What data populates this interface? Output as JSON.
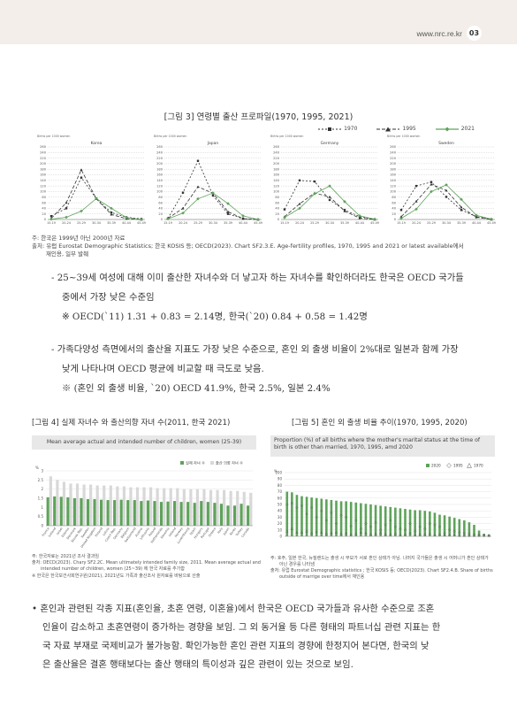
{
  "header": {
    "url": "www.nrc.re.kr",
    "page": "03"
  },
  "figure3": {
    "title": "[그림 3] 연령별 출산 프로파일(1970, 1995, 2021)",
    "legend": [
      "1970",
      "1995",
      "2021"
    ],
    "unit": "Births per 1000 women",
    "age_groups": [
      "15-19",
      "20-24",
      "25-29",
      "30-34",
      "35-39",
      "40-44",
      "45-49"
    ],
    "y_ticks": [
      0,
      20,
      40,
      60,
      80,
      100,
      120,
      140,
      160,
      180,
      200,
      220,
      240,
      260
    ],
    "note1": "주: 한국은 1999년 아닌 2000년 자료",
    "note2": "출처: 유럽 Eurostat Demographic Statistics; 한국 KOSIS 등; OECD(2023). Chart SF2.3.E. Age-fertility profiles, 1970, 1995 and 2021 or latest available에서",
    "note3": "재인용, 일부 발췌"
  },
  "chart_data": [
    {
      "type": "line",
      "title": "Korea",
      "x": [
        "15-19",
        "20-24",
        "25-29",
        "30-34",
        "35-39",
        "40-44",
        "45-49"
      ],
      "ylim": [
        0,
        260
      ],
      "series": [
        {
          "name": "1970",
          "values": [
            12,
            40,
            150,
            75,
            25,
            8,
            2
          ]
        },
        {
          "name": "1995",
          "values": [
            4,
            60,
            178,
            74,
            18,
            3,
            0
          ]
        },
        {
          "name": "2021",
          "values": [
            1,
            8,
            30,
            75,
            40,
            7,
            0
          ]
        }
      ]
    },
    {
      "type": "line",
      "title": "Japan",
      "x": [
        "15-19",
        "20-24",
        "25-29",
        "30-34",
        "35-39",
        "40-44",
        "45-49"
      ],
      "ylim": [
        0,
        260
      ],
      "series": [
        {
          "name": "1970",
          "values": [
            4,
            96,
            210,
            86,
            20,
            3,
            0
          ]
        },
        {
          "name": "1995",
          "values": [
            4,
            40,
            117,
            94,
            28,
            3,
            0
          ]
        },
        {
          "name": "2021",
          "values": [
            2,
            23,
            74,
            95,
            57,
            13,
            0
          ]
        }
      ]
    },
    {
      "type": "line",
      "title": "Germany",
      "x": [
        "15-19",
        "20-24",
        "25-29",
        "30-34",
        "35-39",
        "40-44",
        "45-49"
      ],
      "ylim": [
        0,
        260
      ],
      "series": [
        {
          "name": "1970",
          "values": [
            36,
            140,
            136,
            70,
            34,
            10,
            1
          ]
        },
        {
          "name": "1995",
          "values": [
            10,
            56,
            95,
            81,
            30,
            5,
            0
          ]
        },
        {
          "name": "2021",
          "values": [
            7,
            40,
            92,
            120,
            64,
            13,
            1
          ]
        }
      ]
    },
    {
      "type": "line",
      "title": "Sweden",
      "x": [
        "15-19",
        "20-24",
        "25-29",
        "30-34",
        "35-39",
        "40-44",
        "45-49"
      ],
      "ylim": [
        0,
        260
      ],
      "series": [
        {
          "name": "1970",
          "values": [
            34,
            120,
            134,
            81,
            34,
            10,
            1
          ]
        },
        {
          "name": "1995",
          "values": [
            10,
            65,
            126,
            104,
            44,
            8,
            0
          ]
        },
        {
          "name": "2021",
          "values": [
            4,
            37,
            100,
            124,
            72,
            15,
            1
          ]
        }
      ]
    },
    {
      "type": "bar",
      "title": "Mean average actual and intended number of children, women (25-39)",
      "ylim": [
        0,
        3
      ],
      "series": [
        {
          "name": "실제 자녀 수",
          "values": [
            1.55,
            1.6,
            1.58,
            1.55,
            1.5,
            1.5,
            1.45,
            1.45,
            1.42,
            1.4,
            1.4,
            1.42,
            1.4,
            1.4,
            1.35,
            1.38,
            1.35,
            1.3,
            1.32,
            1.35,
            1.3,
            1.3,
            1.25,
            1.35,
            1.3,
            1.25,
            1.2,
            1.1,
            1.1,
            1.2,
            1.1
          ]
        },
        {
          "name": "출산 의향 자녀 수",
          "values": [
            2.7,
            2.5,
            2.4,
            2.3,
            2.3,
            2.25,
            2.25,
            2.2,
            2.2,
            2.2,
            2.15,
            2.15,
            2.1,
            2.1,
            2.1,
            2.1,
            2.05,
            2.05,
            2.05,
            2.05,
            2.0,
            2.0,
            2.0,
            2.0,
            1.95,
            1.95,
            1.95,
            1.9,
            1.9,
            1.85,
            1.8
          ]
        }
      ]
    },
    {
      "type": "scatter",
      "title": "Proportion (%) of all births where the mother's marital status at the time of birth is other than married, 1970, 1995, amd 2020",
      "ylim": [
        0,
        100
      ],
      "series": [
        {
          "name": "2020",
          "values": [
            70,
            69,
            65,
            63,
            62,
            61,
            60,
            59,
            58,
            57,
            56,
            55,
            55,
            54,
            53,
            52,
            51,
            50,
            49,
            48,
            47,
            46,
            45,
            44,
            43,
            42,
            41,
            41,
            40,
            39,
            37,
            34,
            33,
            31,
            29,
            27,
            25,
            22,
            18,
            9,
            4,
            3
          ]
        },
        {
          "name": "1995",
          "values": [
            50,
            52,
            45,
            48,
            35,
            45,
            30,
            40,
            25,
            37,
            20,
            33,
            30,
            16,
            25,
            12,
            20,
            15,
            22,
            10,
            18,
            25,
            15,
            12,
            10,
            20,
            8,
            15,
            12,
            20,
            18,
            15,
            5,
            10,
            8,
            6,
            5,
            4,
            3,
            2,
            2,
            1
          ]
        },
        {
          "name": "1970",
          "values": [
            8,
            12,
            6,
            6,
            8,
            5,
            7,
            6,
            4,
            5,
            6,
            4,
            5,
            3,
            4,
            6,
            5,
            3,
            4,
            5,
            3,
            3,
            4,
            2,
            3,
            5,
            2,
            3,
            3,
            4,
            2,
            3,
            2,
            2,
            2,
            1,
            1,
            1,
            1,
            1,
            1,
            1
          ]
        }
      ]
    }
  ],
  "countries4": [
    "France",
    "Iceland",
    "Israel",
    "Estonia",
    "Denmark",
    "Slovak Rep.",
    "Sweden",
    "United Kingdom",
    "Finland",
    "Latvia",
    "Czech Rep.",
    "Germany",
    "Belgium",
    "Switzerland",
    "Austria",
    "Lithuania",
    "Poland",
    "Netherlands",
    "Slovenia",
    "Ireland",
    "Norway",
    "Luxembourg",
    "Spain",
    "Hungary",
    "Portugal",
    "Greece",
    "Italy",
    "Japan",
    "Korea",
    "Turkey",
    "Canada"
  ],
  "bullets": {
    "b1_line1": "- 25~39세 여성에 대해 이미 출산한 자녀수와 더 낳고자 하는 자녀수를 확인하더라도 한국은 OECD 국가들",
    "b1_line2": "중에서 가장 낮은 수준임",
    "b1_line3": "※ OECD(`11) 1.31 + 0.83 = 2.14명, 한국(`20) 0.84 + 0.58 = 1.42명",
    "b2_line1": "- 가족다양성 측면에서의 출산율 지표도 가장 낮은 수준으로, 혼인 외 출생 비율이 2%대로 일본과 함께 가장",
    "b2_line2": "낮게 나타나며 OECD 평균에 비교할 때 극도로 낮음.",
    "b2_line3": "※ (혼인 외 출생 비율, `20) OECD 41.9%, 한국 2.5%, 일본 2.4%"
  },
  "figure4": {
    "caption": "[그림 4] 실제 자녀수 와 출산의향 자녀 수(2011, 한국 2021)",
    "header": "Mean average actual and intended number of children, women (25-39)",
    "legend_actual": "실제 자녀 수",
    "legend_intended": "출산 의향 자녀 수",
    "unit": "%",
    "y_ticks": [
      "0",
      "0.5",
      "1",
      "1.5",
      "2",
      "2.5",
      "3"
    ],
    "note1": "주: 한국자료는 2021년 조사 결과임",
    "note2": "출처: OECD(2023). Chary SF2.2C. Mean ultimately intended family size, 2011. Mean average actual and",
    "note3": "intended number of children, women (25~39) 에 한국 자료를 추가함",
    "note4": "※ 한국은 한국보건사회연구원(2021), 2021년도 가족과 출산조사 원자료를 바탕으로 산출"
  },
  "figure5": {
    "caption": "[그림 5] 혼인 외 출생 비율 추이(1970, 1995, 2020)",
    "header": "Proportion (%) of all births where the mother's marital status at the time of birth is other than married, 1970, 1995, amd 2020",
    "legend": [
      "2020",
      "1995",
      "1970"
    ],
    "unit": "%",
    "y_ticks": [
      "0",
      "10",
      "20",
      "30",
      "40",
      "50",
      "60",
      "70",
      "80",
      "90",
      "100"
    ],
    "note1": "주: 호주, 일본 한국, 뉴질랜드는 출생 시 부모가 서로 혼인 상태가 아님. 나머지 국가들은 출생 시 어머니가 혼인 상태가",
    "note2": "아닌 경우를 나타냄",
    "note3": "출처: 유럽 Eurostat Demographic statistics ; 한국 KOSIS 등; OECD(2023). Chart SF2.4.B. Share of births",
    "note4": "outside of marrige over time에서 재인용"
  },
  "final": {
    "line1": "• 혼인과 관련된 각종 지표(혼인율, 초혼 연령, 이혼율)에서 한국은 OECD 국가들과 유사한 수준으로 조혼",
    "line2": "인율이 감소하고 초혼연령이 증가하는 경향을 보임. 그 외 동거율 등 다른 형태의 파트너십 관련 지표는 한",
    "line3": "국 자료 부재로 국제비교가 불가능함. 확인가능한 혼인 관련 지표의 경향에 한정지어 본다면,  한국의 낮",
    "line4": "은 출산율은 결혼 행태보다는 출산 행태의 특이성과 깊은 관련이 있는 것으로 보임."
  }
}
